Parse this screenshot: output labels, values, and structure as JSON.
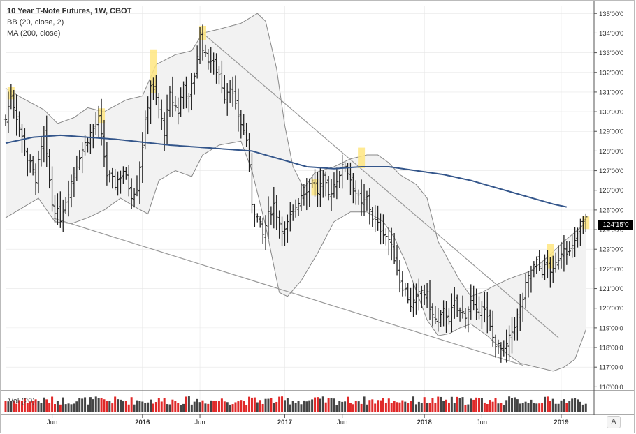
{
  "legend": {
    "title": "10 Year T-Note Futures, 1W, CBOT",
    "bb": "BB (20, close, 2)",
    "ma": "MA (200, close)"
  },
  "volume_label": "Vol (20)",
  "last_price": "124'15'0",
  "auto_button": "A",
  "colors": {
    "bar": "#222222",
    "ma_line": "#34568b",
    "band": "#888888",
    "band_fill": "#f2f2f2",
    "trendline": "#999999",
    "highlight": "#ffe680",
    "vol_up": "#444444",
    "vol_down": "#e02828",
    "grid": "#e6e6e6"
  },
  "chart_data": {
    "type": "ohlc",
    "title": "10 Year T-Note Futures, 1W, CBOT",
    "x_ticks": [
      "Jun",
      "2016",
      "Jun",
      "2017",
      "Jun",
      "2018",
      "Jun",
      "2019"
    ],
    "y_ticks": [
      "116'00'0",
      "117'00'0",
      "118'00'0",
      "119'00'0",
      "120'00'0",
      "121'00'0",
      "122'00'0",
      "123'00'0",
      "124'00'0",
      "125'00'0",
      "126'00'0",
      "127'00'0",
      "128'00'0",
      "129'00'0",
      "130'00'0",
      "131'00'0",
      "132'00'0",
      "133'00'0",
      "134'00'0",
      "135'00'0"
    ],
    "ylim": [
      115.8,
      135.4
    ],
    "x_range_weeks": [
      0,
      215
    ],
    "x_tick_weeks": [
      17,
      50,
      71,
      102,
      123,
      153,
      174,
      203
    ],
    "close_anchors": [
      [
        0,
        129.6
      ],
      [
        2,
        130.9
      ],
      [
        5,
        129.2
      ],
      [
        8,
        127.6
      ],
      [
        11,
        126.6
      ],
      [
        14,
        128.8
      ],
      [
        17,
        125.3
      ],
      [
        20,
        124.6
      ],
      [
        23,
        126.0
      ],
      [
        27,
        127.8
      ],
      [
        31,
        128.9
      ],
      [
        34,
        129.6
      ],
      [
        37,
        126.8
      ],
      [
        40,
        126.3
      ],
      [
        43,
        127.0
      ],
      [
        46,
        125.8
      ],
      [
        48,
        126.2
      ],
      [
        51,
        129.4
      ],
      [
        53,
        131.4
      ],
      [
        55,
        130.6
      ],
      [
        58,
        129.0
      ],
      [
        60,
        130.8
      ],
      [
        63,
        130.0
      ],
      [
        65,
        131.4
      ],
      [
        67,
        130.6
      ],
      [
        69,
        131.9
      ],
      [
        71,
        133.9
      ],
      [
        73,
        132.8
      ],
      [
        75,
        132.6
      ],
      [
        78,
        131.9
      ],
      [
        80,
        130.8
      ],
      [
        82,
        131.4
      ],
      [
        84,
        130.2
      ],
      [
        86,
        129.4
      ],
      [
        88,
        128.6
      ],
      [
        89,
        127.0
      ],
      [
        90,
        125.4
      ],
      [
        92,
        124.6
      ],
      [
        94,
        123.7
      ],
      [
        96,
        124.7
      ],
      [
        98,
        125.3
      ],
      [
        100,
        124.4
      ],
      [
        102,
        123.9
      ],
      [
        104,
        124.6
      ],
      [
        106,
        125.2
      ],
      [
        108,
        125.8
      ],
      [
        110,
        126.1
      ],
      [
        112,
        126.6
      ],
      [
        114,
        125.9
      ],
      [
        116,
        126.6
      ],
      [
        118,
        125.7
      ],
      [
        120,
        126.3
      ],
      [
        122,
        126.9
      ],
      [
        124,
        127.3
      ],
      [
        126,
        126.6
      ],
      [
        128,
        125.9
      ],
      [
        130,
        125.2
      ],
      [
        132,
        125.6
      ],
      [
        134,
        124.6
      ],
      [
        136,
        124.2
      ],
      [
        138,
        123.9
      ],
      [
        140,
        123.5
      ],
      [
        142,
        122.6
      ],
      [
        144,
        121.4
      ],
      [
        146,
        120.9
      ],
      [
        148,
        120.2
      ],
      [
        150,
        120.4
      ],
      [
        152,
        120.9
      ],
      [
        154,
        120.6
      ],
      [
        156,
        119.6
      ],
      [
        158,
        119.2
      ],
      [
        160,
        119.8
      ],
      [
        162,
        119.5
      ],
      [
        164,
        120.2
      ],
      [
        166,
        119.8
      ],
      [
        168,
        119.7
      ],
      [
        170,
        120.3
      ],
      [
        172,
        119.7
      ],
      [
        174,
        120.3
      ],
      [
        176,
        119.4
      ],
      [
        178,
        118.5
      ],
      [
        180,
        118.0
      ],
      [
        182,
        117.8
      ],
      [
        184,
        118.4
      ],
      [
        186,
        119.2
      ],
      [
        188,
        119.9
      ],
      [
        190,
        121.1
      ],
      [
        192,
        121.9
      ],
      [
        194,
        122.3
      ],
      [
        196,
        121.9
      ],
      [
        198,
        122.2
      ],
      [
        200,
        121.8
      ],
      [
        202,
        122.6
      ],
      [
        204,
        123.2
      ],
      [
        206,
        122.8
      ],
      [
        208,
        123.3
      ],
      [
        210,
        124.2
      ],
      [
        212,
        124.5
      ]
    ],
    "ma200_anchors": [
      [
        0,
        128.4
      ],
      [
        10,
        128.7
      ],
      [
        20,
        128.8
      ],
      [
        40,
        128.6
      ],
      [
        60,
        128.3
      ],
      [
        80,
        128.1
      ],
      [
        90,
        128.0
      ],
      [
        100,
        127.6
      ],
      [
        110,
        127.2
      ],
      [
        120,
        127.1
      ],
      [
        130,
        127.2
      ],
      [
        140,
        127.2
      ],
      [
        150,
        127.0
      ],
      [
        160,
        126.8
      ],
      [
        170,
        126.5
      ],
      [
        180,
        126.1
      ],
      [
        190,
        125.7
      ],
      [
        200,
        125.3
      ],
      [
        205,
        125.15
      ]
    ],
    "bb_upper_anchors": [
      [
        0,
        131.2
      ],
      [
        6,
        130.7
      ],
      [
        14,
        130.1
      ],
      [
        19,
        129.4
      ],
      [
        25,
        129.7
      ],
      [
        30,
        130.2
      ],
      [
        36,
        130.0
      ],
      [
        44,
        130.6
      ],
      [
        50,
        130.8
      ],
      [
        55,
        132.4
      ],
      [
        62,
        132.9
      ],
      [
        68,
        133.1
      ],
      [
        72,
        134.0
      ],
      [
        78,
        134.2
      ],
      [
        86,
        134.5
      ],
      [
        92,
        135.0
      ],
      [
        95,
        134.6
      ],
      [
        99,
        132.2
      ],
      [
        102,
        129.3
      ],
      [
        105,
        127.2
      ],
      [
        109,
        126.1
      ],
      [
        113,
        126.9
      ],
      [
        120,
        127.2
      ],
      [
        126,
        127.6
      ],
      [
        132,
        127.8
      ],
      [
        136,
        127.8
      ],
      [
        140,
        127.4
      ],
      [
        144,
        126.8
      ],
      [
        150,
        126.3
      ],
      [
        154,
        125.6
      ],
      [
        158,
        123.4
      ],
      [
        162,
        122.4
      ],
      [
        166,
        121.4
      ],
      [
        170,
        120.6
      ],
      [
        174,
        120.8
      ],
      [
        178,
        121.1
      ],
      [
        184,
        121.5
      ],
      [
        192,
        121.9
      ],
      [
        198,
        122.6
      ],
      [
        204,
        123.4
      ],
      [
        210,
        124.1
      ],
      [
        213,
        124.5
      ]
    ],
    "bb_lower_anchors": [
      [
        0,
        124.6
      ],
      [
        6,
        125.1
      ],
      [
        12,
        125.6
      ],
      [
        18,
        124.4
      ],
      [
        24,
        124.3
      ],
      [
        30,
        124.6
      ],
      [
        36,
        125.0
      ],
      [
        42,
        125.6
      ],
      [
        48,
        125.1
      ],
      [
        52,
        124.8
      ],
      [
        56,
        126.5
      ],
      [
        62,
        127.0
      ],
      [
        68,
        126.7
      ],
      [
        72,
        127.8
      ],
      [
        78,
        128.3
      ],
      [
        86,
        128.5
      ],
      [
        90,
        127.0
      ],
      [
        95,
        124.2
      ],
      [
        100,
        120.8
      ],
      [
        103,
        120.6
      ],
      [
        108,
        121.4
      ],
      [
        114,
        122.8
      ],
      [
        120,
        124.4
      ],
      [
        126,
        124.9
      ],
      [
        132,
        124.9
      ],
      [
        138,
        124.4
      ],
      [
        142,
        123.6
      ],
      [
        146,
        122.4
      ],
      [
        150,
        120.9
      ],
      [
        154,
        119.4
      ],
      [
        158,
        118.6
      ],
      [
        162,
        118.7
      ],
      [
        166,
        119.0
      ],
      [
        170,
        119.2
      ],
      [
        176,
        118.6
      ],
      [
        182,
        117.8
      ],
      [
        188,
        117.2
      ],
      [
        194,
        117.0
      ],
      [
        200,
        116.8
      ],
      [
        204,
        117.0
      ],
      [
        208,
        117.4
      ],
      [
        212,
        118.9
      ]
    ],
    "trendlines": [
      {
        "from": [
          17,
          124.6
        ],
        "to": [
          189,
          117.1
        ]
      },
      {
        "from": [
          72,
          134.0
        ],
        "to": [
          202,
          118.5
        ]
      }
    ],
    "highlights": [
      {
        "week": 2,
        "low": 130.7,
        "high": 131.2
      },
      {
        "week": 35,
        "low": 129.5,
        "high": 130.1
      },
      {
        "week": 54,
        "low": 131.0,
        "high": 133.1
      },
      {
        "week": 72,
        "low": 133.7,
        "high": 134.3
      },
      {
        "week": 113,
        "low": 125.8,
        "high": 126.5
      },
      {
        "week": 130,
        "low": 127.2,
        "high": 128.1
      },
      {
        "week": 199,
        "low": 122.1,
        "high": 123.2
      },
      {
        "week": 212,
        "low": 124.1,
        "high": 124.6
      }
    ]
  }
}
